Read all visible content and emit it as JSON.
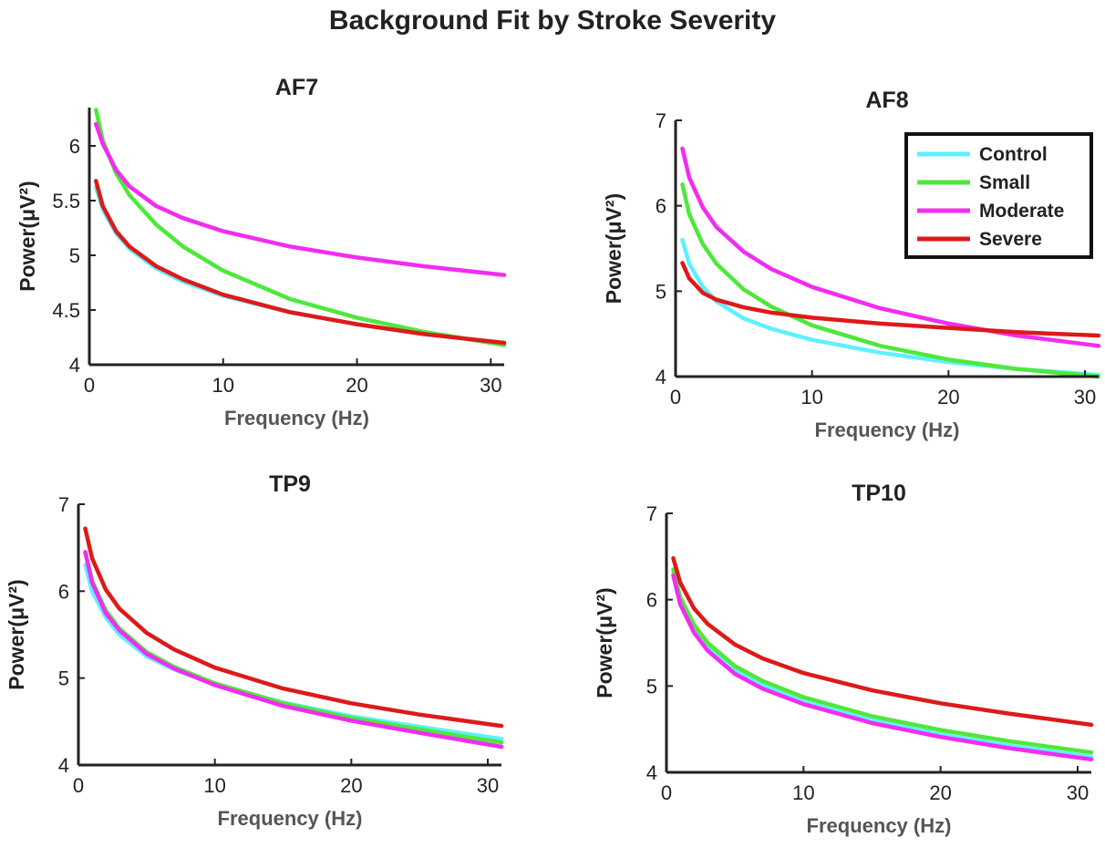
{
  "figure": {
    "title": "Background Fit by Stroke Severity"
  },
  "legend": {
    "placement": "top-right of AF8 panel",
    "entries": [
      {
        "label": "Control",
        "color": "#5ff0ff"
      },
      {
        "label": "Small",
        "color": "#4ee83a"
      },
      {
        "label": "Moderate",
        "color": "#f22cf0"
      },
      {
        "label": "Severe",
        "color": "#dd1a1a"
      }
    ]
  },
  "chart_data": [
    {
      "type": "line",
      "title": "AF7",
      "xlabel": "Frequency (Hz)",
      "ylabel": "Power(μV²)",
      "xlim": [
        0,
        31
      ],
      "ylim": [
        4,
        6.35
      ],
      "xticks": [
        0,
        10,
        20,
        30
      ],
      "yticks": [
        4,
        4.5,
        5,
        5.5,
        6
      ],
      "grid": false,
      "series": [
        {
          "name": "Control",
          "color": "#5ff0ff",
          "x": [
            0.5,
            1,
            2,
            3,
            5,
            7,
            10,
            15,
            20,
            25,
            31
          ],
          "y": [
            5.62,
            5.42,
            5.2,
            5.06,
            4.88,
            4.76,
            4.63,
            4.48,
            4.37,
            4.28,
            4.2
          ]
        },
        {
          "name": "Small",
          "color": "#4ee83a",
          "x": [
            0.5,
            1,
            2,
            3,
            5,
            7,
            10,
            15,
            20,
            25,
            31
          ],
          "y": [
            6.33,
            6.05,
            5.75,
            5.55,
            5.28,
            5.08,
            4.86,
            4.6,
            4.43,
            4.3,
            4.18
          ]
        },
        {
          "name": "Moderate",
          "color": "#f22cf0",
          "x": [
            0.5,
            1,
            2,
            3,
            5,
            7,
            10,
            15,
            20,
            25,
            31
          ],
          "y": [
            6.2,
            6.02,
            5.78,
            5.63,
            5.45,
            5.34,
            5.22,
            5.08,
            4.98,
            4.9,
            4.82
          ]
        },
        {
          "name": "Severe",
          "color": "#dd1a1a",
          "x": [
            0.5,
            1,
            2,
            3,
            5,
            7,
            10,
            15,
            20,
            25,
            31
          ],
          "y": [
            5.68,
            5.45,
            5.22,
            5.08,
            4.9,
            4.78,
            4.64,
            4.48,
            4.37,
            4.28,
            4.2
          ]
        }
      ]
    },
    {
      "type": "line",
      "title": "AF8",
      "xlabel": "Frequency (Hz)",
      "ylabel": "Power(μV²)",
      "xlim": [
        0,
        31
      ],
      "ylim": [
        4,
        7
      ],
      "xticks": [
        0,
        10,
        20,
        30
      ],
      "yticks": [
        4,
        5,
        6,
        7
      ],
      "grid": false,
      "series": [
        {
          "name": "Control",
          "color": "#5ff0ff",
          "x": [
            0.5,
            1,
            2,
            3,
            5,
            7,
            10,
            15,
            20,
            25,
            31
          ],
          "y": [
            5.6,
            5.32,
            5.05,
            4.88,
            4.68,
            4.56,
            4.43,
            4.28,
            4.17,
            4.09,
            4.02
          ]
        },
        {
          "name": "Small",
          "color": "#4ee83a",
          "x": [
            0.5,
            1,
            2,
            3,
            5,
            7,
            10,
            15,
            20,
            25,
            31
          ],
          "y": [
            6.25,
            5.9,
            5.55,
            5.32,
            5.02,
            4.82,
            4.6,
            4.36,
            4.2,
            4.09,
            4.0
          ]
        },
        {
          "name": "Moderate",
          "color": "#f22cf0",
          "x": [
            0.5,
            1,
            2,
            3,
            5,
            7,
            10,
            15,
            20,
            25,
            31
          ],
          "y": [
            6.67,
            6.33,
            5.98,
            5.75,
            5.46,
            5.26,
            5.05,
            4.8,
            4.62,
            4.48,
            4.36
          ]
        },
        {
          "name": "Severe",
          "color": "#dd1a1a",
          "x": [
            0.5,
            1,
            2,
            3,
            5,
            7,
            10,
            15,
            20,
            25,
            31
          ],
          "y": [
            5.33,
            5.15,
            4.98,
            4.9,
            4.81,
            4.75,
            4.69,
            4.62,
            4.57,
            4.52,
            4.48
          ]
        }
      ]
    },
    {
      "type": "line",
      "title": "TP9",
      "xlabel": "Frequency (Hz)",
      "ylabel": "Power(μV²)",
      "xlim": [
        0,
        31
      ],
      "ylim": [
        4,
        7
      ],
      "xticks": [
        0,
        10,
        20,
        30
      ],
      "yticks": [
        4,
        5,
        6,
        7
      ],
      "grid": false,
      "series": [
        {
          "name": "Control",
          "color": "#5ff0ff",
          "x": [
            0.5,
            1,
            2,
            3,
            5,
            7,
            10,
            15,
            20,
            25,
            31
          ],
          "y": [
            6.3,
            6.0,
            5.7,
            5.5,
            5.25,
            5.1,
            4.93,
            4.72,
            4.56,
            4.44,
            4.3
          ]
        },
        {
          "name": "Small",
          "color": "#4ee83a",
          "x": [
            0.5,
            1,
            2,
            3,
            5,
            7,
            10,
            15,
            20,
            25,
            31
          ],
          "y": [
            6.45,
            6.12,
            5.78,
            5.57,
            5.3,
            5.13,
            4.94,
            4.71,
            4.54,
            4.41,
            4.26
          ]
        },
        {
          "name": "Moderate",
          "color": "#f22cf0",
          "x": [
            0.5,
            1,
            2,
            3,
            5,
            7,
            10,
            15,
            20,
            25,
            31
          ],
          "y": [
            6.45,
            6.1,
            5.75,
            5.55,
            5.28,
            5.11,
            4.92,
            4.68,
            4.51,
            4.37,
            4.21
          ]
        },
        {
          "name": "Severe",
          "color": "#dd1a1a",
          "x": [
            0.5,
            1,
            2,
            3,
            5,
            7,
            10,
            15,
            20,
            25,
            31
          ],
          "y": [
            6.72,
            6.38,
            6.02,
            5.8,
            5.52,
            5.33,
            5.12,
            4.88,
            4.71,
            4.58,
            4.45
          ]
        }
      ]
    },
    {
      "type": "line",
      "title": "TP10",
      "xlabel": "Frequency (Hz)",
      "ylabel": "Power(μV²)",
      "xlim": [
        0,
        31
      ],
      "ylim": [
        4,
        7
      ],
      "xticks": [
        0,
        10,
        20,
        30
      ],
      "yticks": [
        4,
        5,
        6,
        7
      ],
      "grid": false,
      "series": [
        {
          "name": "Control",
          "color": "#5ff0ff",
          "x": [
            0.5,
            1,
            2,
            3,
            5,
            7,
            10,
            15,
            20,
            25,
            31
          ],
          "y": [
            6.3,
            5.98,
            5.66,
            5.45,
            5.18,
            5.01,
            4.82,
            4.6,
            4.44,
            4.31,
            4.18
          ]
        },
        {
          "name": "Small",
          "color": "#4ee83a",
          "x": [
            0.5,
            1,
            2,
            3,
            5,
            7,
            10,
            15,
            20,
            25,
            31
          ],
          "y": [
            6.35,
            6.03,
            5.71,
            5.5,
            5.23,
            5.06,
            4.87,
            4.65,
            4.49,
            4.36,
            4.23
          ]
        },
        {
          "name": "Moderate",
          "color": "#f22cf0",
          "x": [
            0.5,
            1,
            2,
            3,
            5,
            7,
            10,
            15,
            20,
            25,
            31
          ],
          "y": [
            6.28,
            5.95,
            5.62,
            5.41,
            5.14,
            4.97,
            4.79,
            4.57,
            4.41,
            4.28,
            4.15
          ]
        },
        {
          "name": "Severe",
          "color": "#dd1a1a",
          "x": [
            0.5,
            1,
            2,
            3,
            5,
            7,
            10,
            15,
            20,
            25,
            31
          ],
          "y": [
            6.48,
            6.2,
            5.9,
            5.72,
            5.48,
            5.32,
            5.15,
            4.95,
            4.8,
            4.68,
            4.55
          ]
        }
      ]
    }
  ]
}
